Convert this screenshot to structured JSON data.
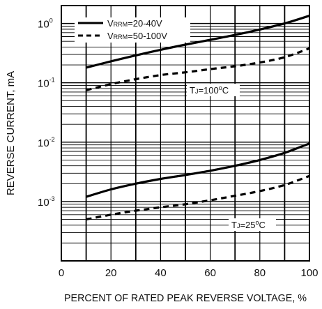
{
  "chart_data": {
    "type": "line",
    "xlabel": "PERCENT OF RATED PEAK REVERSE VOLTAGE, %",
    "ylabel": "REVERSE CURRENT, mA",
    "xlim": [
      0,
      100
    ],
    "ylim": [
      0.0001,
      2
    ],
    "yscale": "log",
    "grid": true,
    "x_ticks": [
      0,
      20,
      40,
      60,
      80,
      100
    ],
    "y_ticks": [
      {
        "base": "10",
        "exp": "0",
        "value": 1
      },
      {
        "base": "10",
        "exp": "-1",
        "value": 0.1
      },
      {
        "base": "10",
        "exp": "-2",
        "value": 0.01
      },
      {
        "base": "10",
        "exp": "-3",
        "value": 0.001
      }
    ],
    "legend": {
      "placement": "top-left",
      "entries": [
        {
          "prefix": "V",
          "sub": "RRM",
          "suffix": "=20-40V",
          "style": "solid"
        },
        {
          "prefix": "V",
          "sub": "RRM",
          "suffix": "=50-100V",
          "style": "dashed"
        }
      ]
    },
    "annotations": [
      {
        "prefix": "T",
        "sub": "J",
        "mid": "=100",
        "sup": "o",
        "suffix": "C"
      },
      {
        "prefix": "T",
        "sub": "J",
        "mid": "=25",
        "sup": "o",
        "suffix": "C"
      }
    ],
    "series": [
      {
        "legend_index": 0,
        "condition": 0,
        "style": "solid",
        "x": [
          10,
          20,
          30,
          40,
          50,
          60,
          70,
          80,
          90,
          100
        ],
        "y": [
          0.18,
          0.23,
          0.29,
          0.36,
          0.44,
          0.53,
          0.64,
          0.79,
          1.0,
          1.35
        ]
      },
      {
        "legend_index": 1,
        "condition": 0,
        "style": "dashed",
        "x": [
          10,
          20,
          30,
          40,
          50,
          60,
          70,
          80,
          90,
          100
        ],
        "y": [
          0.075,
          0.095,
          0.115,
          0.135,
          0.15,
          0.17,
          0.19,
          0.22,
          0.27,
          0.38
        ]
      },
      {
        "legend_index": 0,
        "condition": 1,
        "style": "solid",
        "x": [
          10,
          20,
          30,
          40,
          50,
          60,
          70,
          80,
          90,
          100
        ],
        "y": [
          0.0012,
          0.0016,
          0.002,
          0.0024,
          0.0028,
          0.0033,
          0.004,
          0.005,
          0.0066,
          0.0095
        ]
      },
      {
        "legend_index": 1,
        "condition": 1,
        "style": "dashed",
        "x": [
          10,
          20,
          30,
          40,
          50,
          60,
          70,
          80,
          90,
          100
        ],
        "y": [
          0.0005,
          0.0006,
          0.0007,
          0.0008,
          0.0009,
          0.00105,
          0.00125,
          0.0015,
          0.0019,
          0.0027
        ]
      }
    ]
  }
}
